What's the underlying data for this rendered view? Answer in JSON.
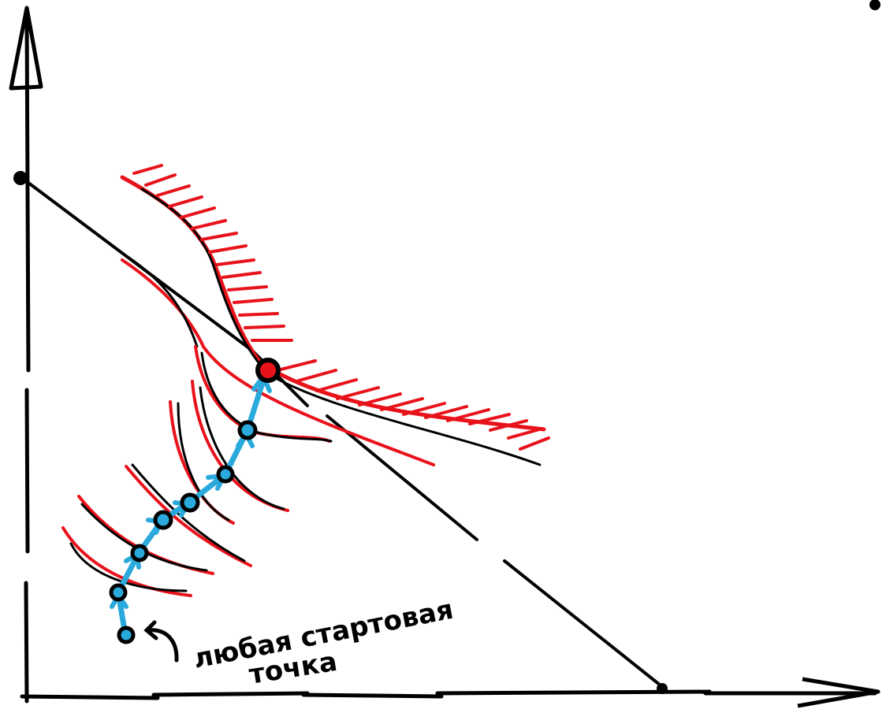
{
  "diagram": {
    "title": "",
    "annotation": {
      "line1": "любая стартовая",
      "line2": "точка"
    },
    "colors": {
      "ink": "#000000",
      "constraint": "#e8121b",
      "path": "#29a9dc",
      "optimum": "#e8121b",
      "background": "#ffffff"
    },
    "icons": {
      "y_axis_arrow": "arrow-up-icon",
      "x_axis_arrow": "arrow-right-icon",
      "pointer": "curved-arrow-icon"
    }
  }
}
